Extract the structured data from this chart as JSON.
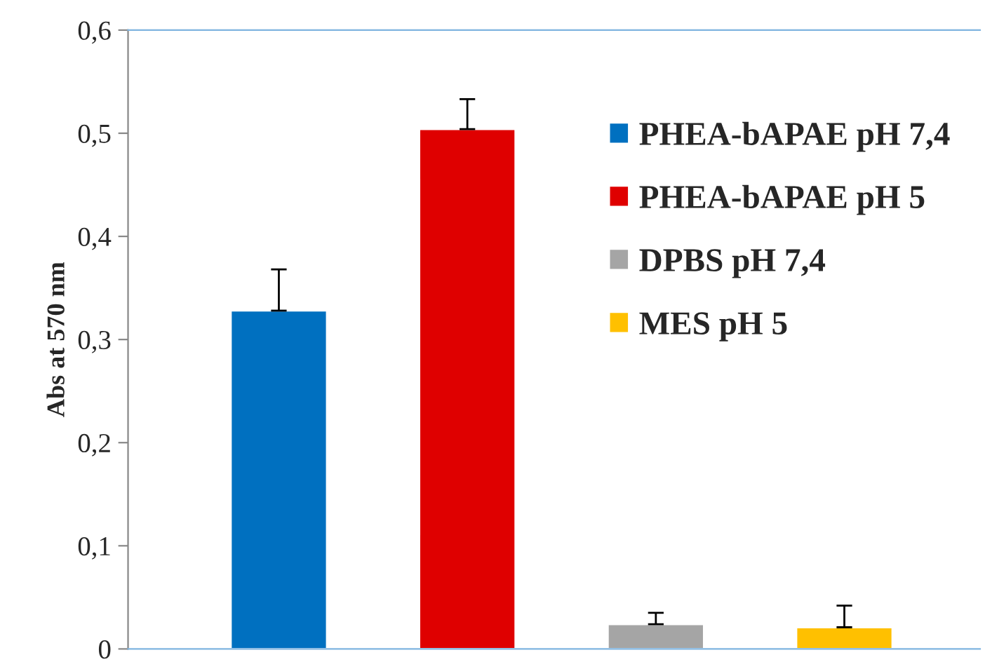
{
  "chart_data": {
    "type": "bar",
    "ylabel": "Abs at 570 nm",
    "categories": [
      null,
      null,
      null,
      null
    ],
    "series": [
      {
        "name": "PHEA-bAPAE pH 7,4",
        "color": "#0070c0",
        "values": [
          0.328,
          null,
          null,
          null
        ],
        "errors": [
          [
            0.328,
            0.368
          ],
          null,
          null,
          null
        ]
      },
      {
        "name": "PHEA-bAPAE pH 5",
        "color": "#df0000",
        "values": [
          null,
          0.504,
          null,
          null
        ],
        "errors": [
          null,
          [
            0.504,
            0.533
          ],
          null,
          null
        ]
      },
      {
        "name": "DPBS pH 7,4",
        "color": "#a5a5a5",
        "values": [
          null,
          null,
          0.024,
          null
        ],
        "errors": [
          null,
          null,
          [
            0.024,
            0.035
          ],
          null
        ]
      },
      {
        "name": "MES pH 5",
        "color": "#ffc000",
        "values": [
          null,
          null,
          null,
          0.021
        ],
        "errors": [
          null,
          null,
          null,
          [
            0.021,
            0.042
          ]
        ]
      }
    ],
    "ylim": [
      0,
      0.6
    ],
    "yticks": [
      0,
      {
        "value": 0.1,
        "label": "0,1"
      },
      {
        "value": 0.2,
        "label": "0,2"
      },
      {
        "value": 0.3,
        "label": "0,3"
      },
      {
        "value": 0.4,
        "label": "0,4"
      },
      {
        "value": 0.5,
        "label": "0,5"
      },
      {
        "value": 0.6,
        "label": "0,6"
      }
    ],
    "grid": false,
    "legend": "top right"
  }
}
